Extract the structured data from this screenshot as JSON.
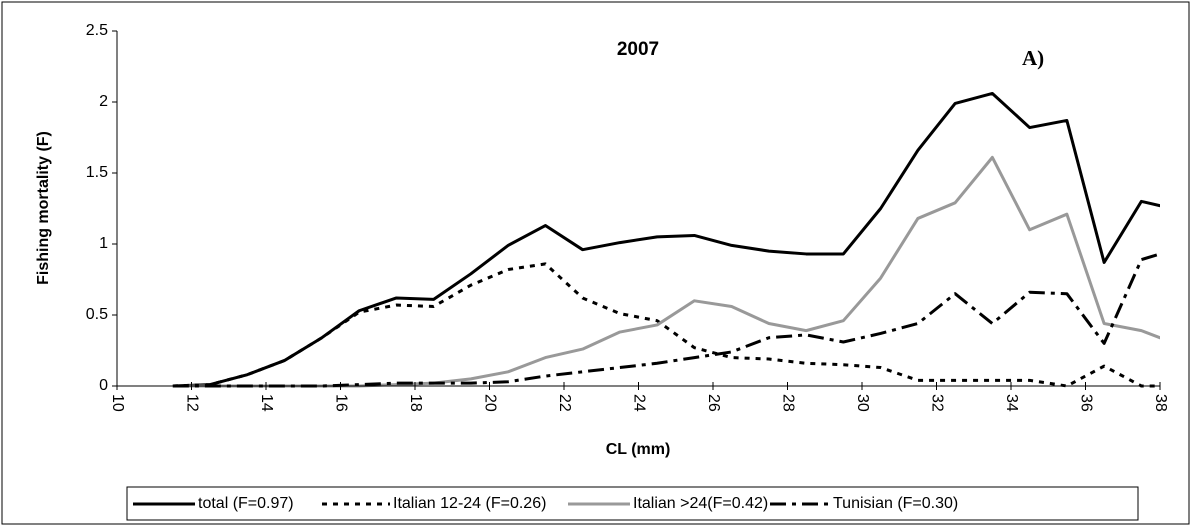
{
  "chart_data": {
    "type": "line",
    "title": "2007",
    "annotation": "A)",
    "x_label": "CL (mm)",
    "y_label": "Fishing mortality (F)",
    "x": [
      11.5,
      12.5,
      13.5,
      14.5,
      15.5,
      16.5,
      17.5,
      18.5,
      19.5,
      20.5,
      21.5,
      22.5,
      23.5,
      24.5,
      25.5,
      26.5,
      27.5,
      28.5,
      29.5,
      30.5,
      31.5,
      32.5,
      33.5,
      34.5,
      35.5,
      36.5,
      37.5,
      38.5
    ],
    "xlim": [
      10,
      38
    ],
    "xticks": [
      10,
      12,
      14,
      16,
      18,
      20,
      22,
      24,
      26,
      28,
      30,
      32,
      34,
      36,
      38
    ],
    "ylim": [
      0,
      2.5
    ],
    "yticks": [
      0,
      0.5,
      1,
      1.5,
      2,
      2.5
    ],
    "grid": false,
    "legend": "bottom",
    "series": [
      {
        "name": "total (F=0.97)",
        "color": "#000000",
        "line_style": "solid",
        "values": [
          0,
          0.01,
          0.08,
          0.18,
          0.34,
          0.53,
          0.62,
          0.61,
          0.79,
          0.99,
          1.13,
          0.96,
          1.01,
          1.05,
          1.06,
          0.99,
          0.95,
          0.93,
          0.93,
          1.25,
          1.66,
          1.99,
          2.06,
          1.82,
          1.87,
          0.87,
          1.3,
          1.24
        ]
      },
      {
        "name": "Italian 12-24 (F=0.26)",
        "color": "#000000",
        "line_style": "dotted",
        "values": [
          0,
          0.01,
          0.08,
          0.18,
          0.34,
          0.52,
          0.57,
          0.56,
          0.71,
          0.82,
          0.86,
          0.62,
          0.51,
          0.46,
          0.27,
          0.2,
          0.19,
          0.16,
          0.15,
          0.13,
          0.04,
          0.04,
          0.04,
          0.04,
          0,
          0.14,
          0,
          0
        ]
      },
      {
        "name": "Italian >24(F=0.42)",
        "color": "#999999",
        "line_style": "solid",
        "values": [
          0,
          0,
          0,
          0,
          0,
          0,
          0.01,
          0.02,
          0.05,
          0.1,
          0.2,
          0.26,
          0.38,
          0.43,
          0.6,
          0.56,
          0.44,
          0.39,
          0.46,
          0.76,
          1.18,
          1.29,
          1.61,
          1.1,
          1.21,
          0.44,
          0.39,
          0.29
        ]
      },
      {
        "name": "Tunisian (F=0.30)",
        "color": "#000000",
        "line_style": "dash-dot",
        "values": [
          0,
          0,
          0,
          0,
          0,
          0.01,
          0.02,
          0.02,
          0.02,
          0.03,
          0.07,
          0.1,
          0.13,
          0.16,
          0.2,
          0.24,
          0.34,
          0.36,
          0.31,
          0.37,
          0.44,
          0.65,
          0.44,
          0.66,
          0.65,
          0.3,
          0.89,
          0.97
        ]
      }
    ]
  }
}
